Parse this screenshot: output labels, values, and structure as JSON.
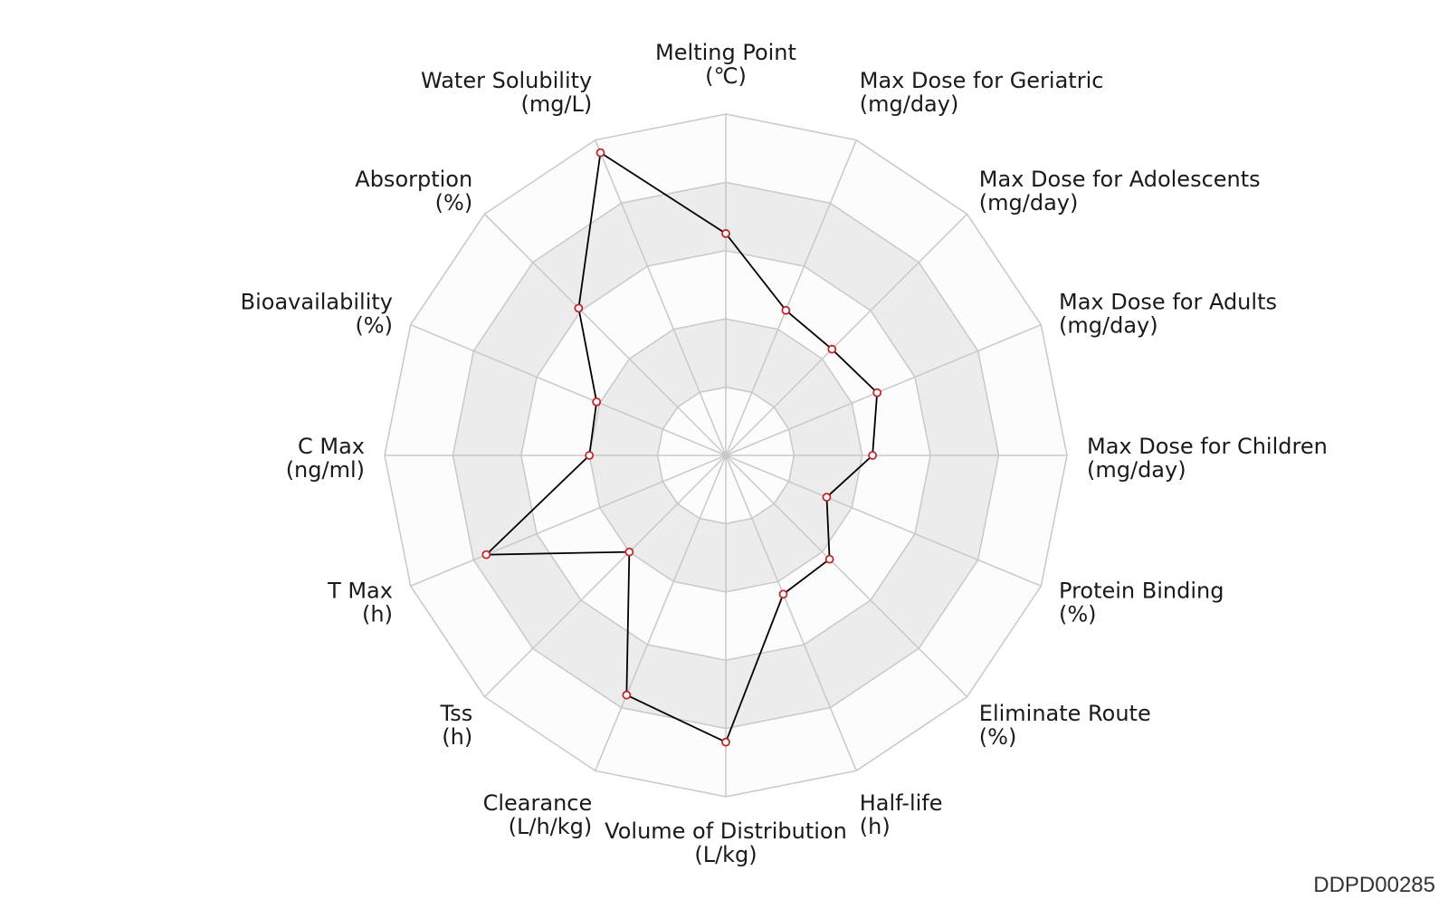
{
  "chart_data": {
    "type": "radar",
    "axes": [
      {
        "label": "Melting Point",
        "unit": "(℃)"
      },
      {
        "label": "Max Dose for Geriatric",
        "unit": "(mg/day)"
      },
      {
        "label": "Max Dose for Adolescents",
        "unit": "(mg/day)"
      },
      {
        "label": "Max Dose for Adults",
        "unit": "(mg/day)"
      },
      {
        "label": "Max Dose for Children",
        "unit": "(mg/day)"
      },
      {
        "label": "Protein Binding",
        "unit": "(%)"
      },
      {
        "label": "Eliminate Route",
        "unit": "(%)"
      },
      {
        "label": "Half-life",
        "unit": "(h)"
      },
      {
        "label": "Volume of Distribution",
        "unit": "(L/kg)"
      },
      {
        "label": "Clearance",
        "unit": "(L/h/kg)"
      },
      {
        "label": "Tss",
        "unit": "(h)"
      },
      {
        "label": "T Max",
        "unit": "(h)"
      },
      {
        "label": "C Max",
        "unit": "(ng/ml)"
      },
      {
        "label": "Bioavailability",
        "unit": "(%)"
      },
      {
        "label": "Absorption",
        "unit": "(%)"
      },
      {
        "label": "Water Solubility",
        "unit": "(mg/L)"
      }
    ],
    "values": [
      0.65,
      0.46,
      0.44,
      0.48,
      0.43,
      0.32,
      0.43,
      0.44,
      0.84,
      0.76,
      0.4,
      0.76,
      0.4,
      0.41,
      0.61,
      0.96
    ],
    "range": [
      0,
      1
    ],
    "rings": 5,
    "colors": {
      "series_line": "#000000",
      "marker_edge": "#c0262a",
      "marker_fill": "#ffffff",
      "band_light": "#fcfcfc",
      "band_dark": "#ececec",
      "grid": "#c8c8c8"
    }
  },
  "watermark": "DDPD00285"
}
